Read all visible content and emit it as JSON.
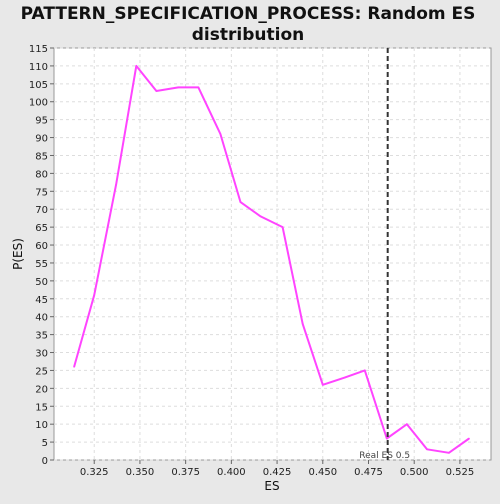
{
  "chart_data": {
    "type": "line",
    "title": "PATTERN_SPECIFICATION_PROCESS: Random ES distribution",
    "title_lines": [
      "PATTERN_SPECIFICATION_PROCESS: Random ES",
      "distribution"
    ],
    "xlabel": "ES",
    "ylabel": "P(ES)",
    "xlim": [
      0.303,
      0.542
    ],
    "ylim": [
      0,
      115
    ],
    "x_ticks": [
      0.325,
      0.35,
      0.375,
      0.4,
      0.425,
      0.45,
      0.475,
      0.5,
      0.525
    ],
    "x_tick_labels": [
      "0.325",
      "0.350",
      "0.375",
      "0.400",
      "0.425",
      "0.450",
      "0.475",
      "0.500",
      "0.525"
    ],
    "y_ticks": [
      0,
      5,
      10,
      15,
      20,
      25,
      30,
      35,
      40,
      45,
      50,
      55,
      60,
      65,
      70,
      75,
      80,
      85,
      90,
      95,
      100,
      105,
      110,
      115
    ],
    "grid": true,
    "series": [
      {
        "color": "#ff44ff",
        "x": [
          0.314,
          0.325,
          0.337,
          0.348,
          0.359,
          0.371,
          0.382,
          0.394,
          0.405,
          0.416,
          0.428,
          0.439,
          0.45,
          0.462,
          0.473,
          0.485,
          0.496,
          0.507,
          0.519,
          0.53
        ],
        "y": [
          26,
          46,
          77,
          110,
          103,
          104,
          104,
          91,
          72,
          68,
          65,
          38,
          21,
          23,
          25,
          6,
          10,
          3,
          2,
          6
        ]
      }
    ],
    "annotation": {
      "label": "Real ES 0.5",
      "x": 0.4855,
      "color": "#333333"
    }
  }
}
